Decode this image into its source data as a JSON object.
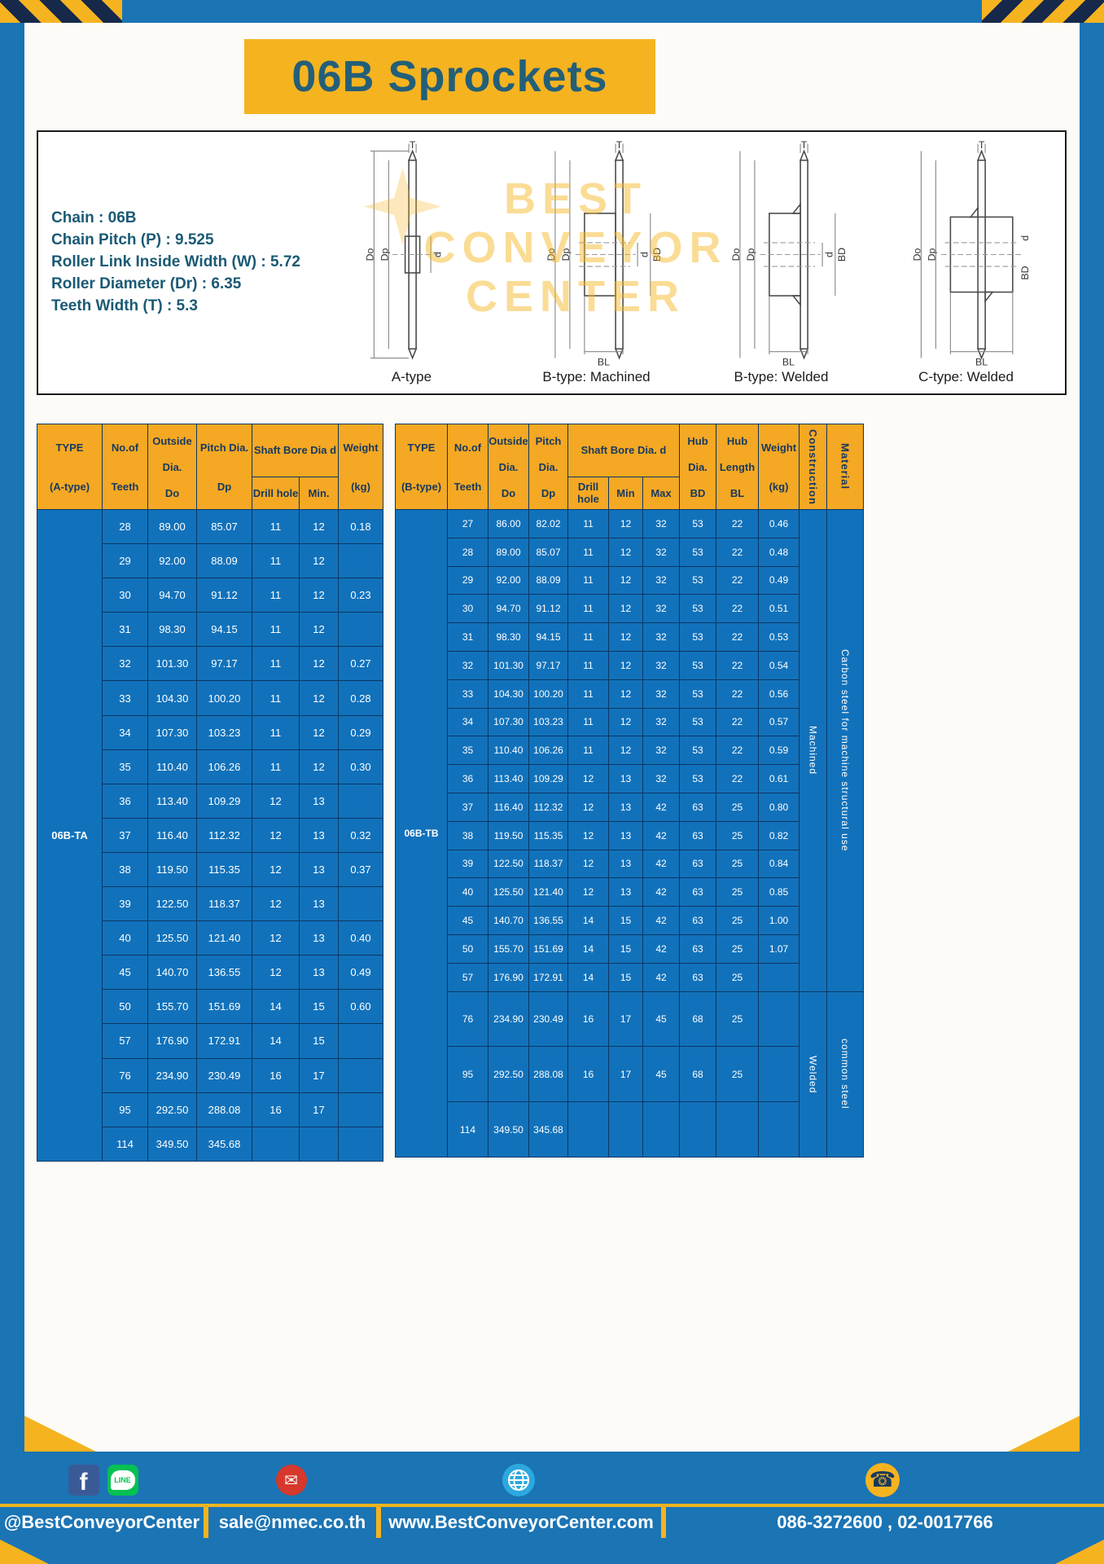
{
  "title": "06B Sprockets",
  "specs": [
    "Chain : 06B",
    "Chain Pitch (P) : 9.525",
    "Roller Link Inside Width (W) : 5.72",
    "Roller Diameter (Dr) : 6.35",
    "Teeth Width (T) : 5.3"
  ],
  "watermark": [
    "BEST",
    "CONVEYOR",
    "CENTER"
  ],
  "diagrams": {
    "captions": [
      "A-type",
      "B-type: Machined",
      "B-type: Welded",
      "C-type: Welded"
    ],
    "dims": {
      "T": "T",
      "Do": "Do",
      "Dp": "Dp",
      "d": "d",
      "BD": "BD",
      "BL": "BL"
    }
  },
  "table_a": {
    "type_value": "06B-TA",
    "header": {
      "type": [
        "TYPE",
        "(A-type)"
      ],
      "teeth": [
        "No.of",
        "Teeth"
      ],
      "outside": [
        "Outside",
        "Dia.",
        "Do"
      ],
      "pitch": [
        "Pitch Dia.",
        "Dp"
      ],
      "shaft_group": "Shaft Bore Dia d",
      "drill": "Drill hole",
      "min": "Min.",
      "weight": [
        "Weight",
        "(kg)"
      ]
    },
    "rows": [
      [
        "28",
        "89.00",
        "85.07",
        "11",
        "12",
        "0.18"
      ],
      [
        "29",
        "92.00",
        "88.09",
        "11",
        "12",
        ""
      ],
      [
        "30",
        "94.70",
        "91.12",
        "11",
        "12",
        "0.23"
      ],
      [
        "31",
        "98.30",
        "94.15",
        "11",
        "12",
        ""
      ],
      [
        "32",
        "101.30",
        "97.17",
        "11",
        "12",
        "0.27"
      ],
      [
        "33",
        "104.30",
        "100.20",
        "11",
        "12",
        "0.28"
      ],
      [
        "34",
        "107.30",
        "103.23",
        "11",
        "12",
        "0.29"
      ],
      [
        "35",
        "110.40",
        "106.26",
        "11",
        "12",
        "0.30"
      ],
      [
        "36",
        "113.40",
        "109.29",
        "12",
        "13",
        ""
      ],
      [
        "37",
        "116.40",
        "112.32",
        "12",
        "13",
        "0.32"
      ],
      [
        "38",
        "119.50",
        "115.35",
        "12",
        "13",
        "0.37"
      ],
      [
        "39",
        "122.50",
        "118.37",
        "12",
        "13",
        ""
      ],
      [
        "40",
        "125.50",
        "121.40",
        "12",
        "13",
        "0.40"
      ],
      [
        "45",
        "140.70",
        "136.55",
        "12",
        "13",
        "0.49"
      ],
      [
        "50",
        "155.70",
        "151.69",
        "14",
        "15",
        "0.60"
      ],
      [
        "57",
        "176.90",
        "172.91",
        "14",
        "15",
        ""
      ],
      [
        "76",
        "234.90",
        "230.49",
        "16",
        "17",
        ""
      ],
      [
        "95",
        "292.50",
        "288.08",
        "16",
        "17",
        ""
      ],
      [
        "114",
        "349.50",
        "345.68",
        "",
        "",
        ""
      ]
    ]
  },
  "table_b": {
    "type_value": "06B-TB",
    "header": {
      "type": [
        "TYPE",
        "(B-type)"
      ],
      "teeth": [
        "No.of",
        "Teeth"
      ],
      "outside": [
        "Outside",
        "Dia.",
        "Do"
      ],
      "pitch": [
        "Pitch",
        "Dia.",
        "Dp"
      ],
      "shaft_group": "Shaft Bore Dia. d",
      "drill": "Drill hole",
      "min": "Min",
      "max": "Max",
      "hub_dia": [
        "Hub",
        "Dia.",
        "BD"
      ],
      "hub_len": [
        "Hub",
        "Length",
        "BL"
      ],
      "weight": [
        "Weight",
        "(kg)"
      ],
      "construction": "Construction",
      "material": "Material"
    },
    "rows": [
      [
        "27",
        "86.00",
        "82.02",
        "11",
        "12",
        "32",
        "53",
        "22",
        "0.46"
      ],
      [
        "28",
        "89.00",
        "85.07",
        "11",
        "12",
        "32",
        "53",
        "22",
        "0.48"
      ],
      [
        "29",
        "92.00",
        "88.09",
        "11",
        "12",
        "32",
        "53",
        "22",
        "0.49"
      ],
      [
        "30",
        "94.70",
        "91.12",
        "11",
        "12",
        "32",
        "53",
        "22",
        "0.51"
      ],
      [
        "31",
        "98.30",
        "94.15",
        "11",
        "12",
        "32",
        "53",
        "22",
        "0.53"
      ],
      [
        "32",
        "101.30",
        "97.17",
        "11",
        "12",
        "32",
        "53",
        "22",
        "0.54"
      ],
      [
        "33",
        "104.30",
        "100.20",
        "11",
        "12",
        "32",
        "53",
        "22",
        "0.56"
      ],
      [
        "34",
        "107.30",
        "103.23",
        "11",
        "12",
        "32",
        "53",
        "22",
        "0.57"
      ],
      [
        "35",
        "110.40",
        "106.26",
        "11",
        "12",
        "32",
        "53",
        "22",
        "0.59"
      ],
      [
        "36",
        "113.40",
        "109.29",
        "12",
        "13",
        "32",
        "53",
        "22",
        "0.61"
      ],
      [
        "37",
        "116.40",
        "112.32",
        "12",
        "13",
        "42",
        "63",
        "25",
        "0.80"
      ],
      [
        "38",
        "119.50",
        "115.35",
        "12",
        "13",
        "42",
        "63",
        "25",
        "0.82"
      ],
      [
        "39",
        "122.50",
        "118.37",
        "12",
        "13",
        "42",
        "63",
        "25",
        "0.84"
      ],
      [
        "40",
        "125.50",
        "121.40",
        "12",
        "13",
        "42",
        "63",
        "25",
        "0.85"
      ],
      [
        "45",
        "140.70",
        "136.55",
        "14",
        "15",
        "42",
        "63",
        "25",
        "1.00"
      ],
      [
        "50",
        "155.70",
        "151.69",
        "14",
        "15",
        "42",
        "63",
        "25",
        "1.07"
      ],
      [
        "57",
        "176.90",
        "172.91",
        "14",
        "15",
        "42",
        "63",
        "25",
        ""
      ],
      [
        "76",
        "234.90",
        "230.49",
        "16",
        "17",
        "45",
        "68",
        "25",
        ""
      ],
      [
        "95",
        "292.50",
        "288.08",
        "16",
        "17",
        "45",
        "68",
        "25",
        ""
      ],
      [
        "114",
        "349.50",
        "345.68",
        "",
        "",
        "",
        "",
        "",
        ""
      ]
    ],
    "construction": [
      {
        "label": "Machined",
        "rows": 17
      },
      {
        "label": "Welded",
        "rows": 3
      }
    ],
    "material": [
      {
        "label": "Carbon steel for machine structural use",
        "rows": 17
      },
      {
        "label": "common steel",
        "rows": 3
      }
    ]
  },
  "footer": {
    "facebook": "f",
    "line": "LINE",
    "social": "@BestConveyorCenter",
    "email": "sale@nmec.co.th",
    "website": "www.BestConveyorCenter.com",
    "phone": "086-3272600 , 02-0017766"
  }
}
